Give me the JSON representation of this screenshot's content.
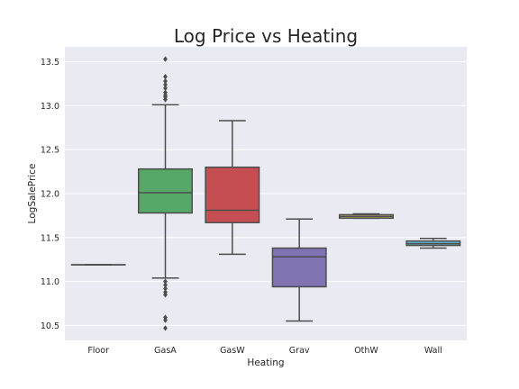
{
  "chart_data": {
    "type": "boxplot",
    "title": "Log Price vs Heating",
    "xlabel": "Heating",
    "ylabel": "LogSalePrice",
    "ylim": [
      10.33,
      13.67
    ],
    "yticks": [
      10.5,
      11.0,
      11.5,
      12.0,
      12.5,
      13.0,
      13.5
    ],
    "ytick_labels": [
      "10.5",
      "11.0",
      "11.5",
      "12.0",
      "12.5",
      "13.0",
      "13.5"
    ],
    "grid": true,
    "categories": [
      "Floor",
      "GasA",
      "GasW",
      "Grav",
      "OthW",
      "Wall"
    ],
    "boxes": [
      {
        "category": "Floor",
        "q1": 11.19,
        "median": 11.19,
        "q3": 11.19,
        "whisker_low": 11.19,
        "whisker_high": 11.19,
        "color": "#4c72b0",
        "outliers": []
      },
      {
        "category": "GasA",
        "q1": 11.78,
        "median": 12.01,
        "q3": 12.28,
        "whisker_low": 11.04,
        "whisker_high": 13.01,
        "color": "#55a868",
        "outliers": [
          13.07,
          13.1,
          13.12,
          13.15,
          13.2,
          13.24,
          13.28,
          13.33,
          13.53,
          11.0,
          10.96,
          10.92,
          10.88,
          10.85,
          10.59,
          10.56,
          10.47
        ]
      },
      {
        "category": "GasW",
        "q1": 11.67,
        "median": 11.81,
        "q3": 12.3,
        "whisker_low": 11.31,
        "whisker_high": 12.83,
        "color": "#c44e52",
        "outliers": []
      },
      {
        "category": "Grav",
        "q1": 10.94,
        "median": 11.28,
        "q3": 11.38,
        "whisker_low": 10.55,
        "whisker_high": 11.71,
        "color": "#8172b2",
        "outliers": []
      },
      {
        "category": "OthW",
        "q1": 11.72,
        "median": 11.74,
        "q3": 11.76,
        "whisker_low": 11.72,
        "whisker_high": 11.77,
        "color": "#ccb974",
        "outliers": []
      },
      {
        "category": "Wall",
        "q1": 11.41,
        "median": 11.43,
        "q3": 11.46,
        "whisker_low": 11.38,
        "whisker_high": 11.49,
        "color": "#64b5cd",
        "outliers": []
      }
    ],
    "colors": {
      "background": "#eaeaf2",
      "grid": "#ffffff",
      "line": "#4d4d4d"
    }
  }
}
